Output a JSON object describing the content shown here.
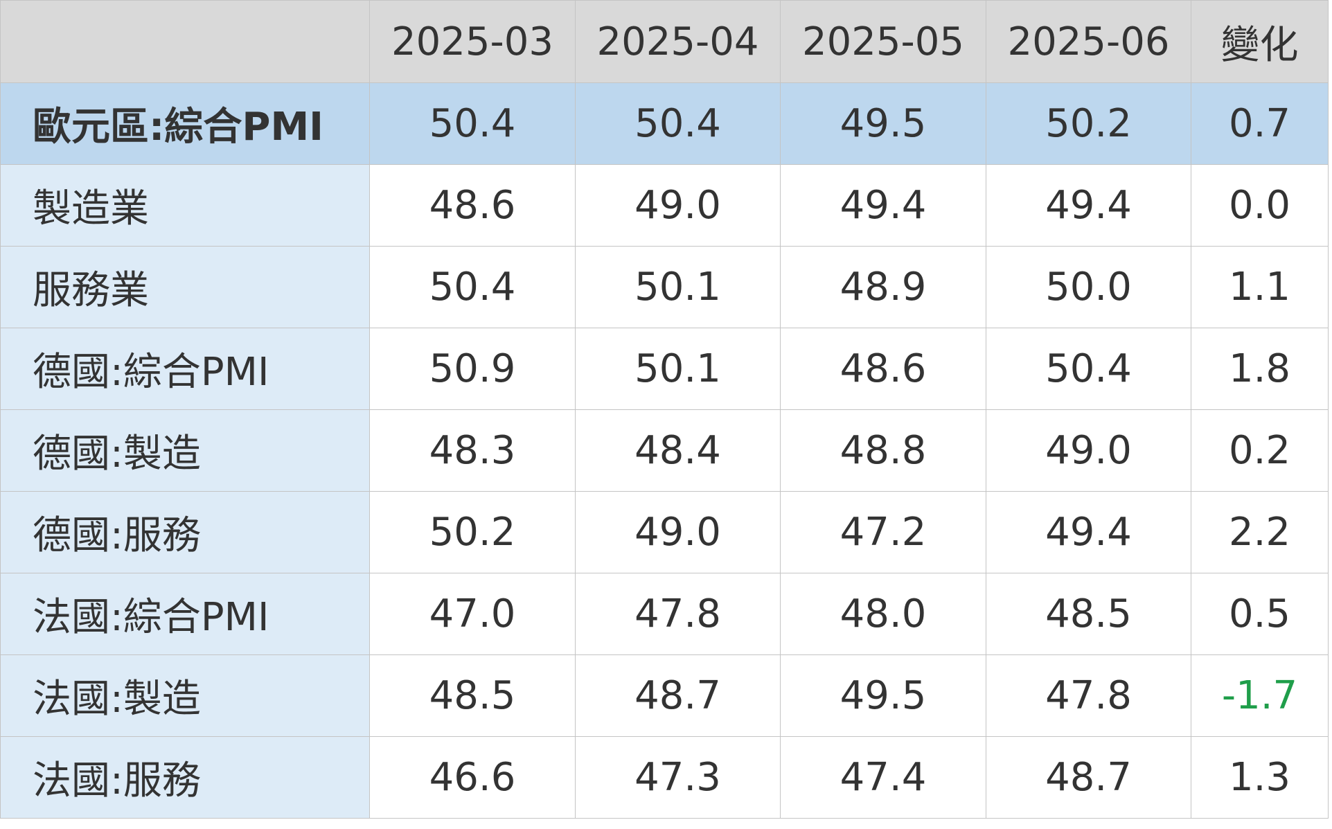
{
  "table": {
    "header": [
      "",
      "2025-03",
      "2025-04",
      "2025-05",
      "2025-06",
      "變化"
    ],
    "rows": [
      [
        "歐元區:綜合PMI",
        "50.4",
        "50.4",
        "49.5",
        "50.2",
        "0.7"
      ],
      [
        "製造業",
        "48.6",
        "49.0",
        "49.4",
        "49.4",
        "0.0"
      ],
      [
        "服務業",
        "50.4",
        "50.1",
        "48.9",
        "50.0",
        "1.1"
      ],
      [
        "德國:綜合PMI",
        "50.9",
        "50.1",
        "48.6",
        "50.4",
        "1.8"
      ],
      [
        "德國:製造",
        "48.3",
        "48.4",
        "48.8",
        "49.0",
        "0.2"
      ],
      [
        "德國:服務",
        "50.2",
        "49.0",
        "47.2",
        "49.4",
        "2.2"
      ],
      [
        "法國:綜合PMI",
        "47.0",
        "47.8",
        "48.0",
        "48.5",
        "0.5"
      ],
      [
        "法國:製造",
        "48.5",
        "48.7",
        "49.5",
        "47.8",
        "-1.7"
      ],
      [
        "法國:服務",
        "46.6",
        "47.3",
        "47.4",
        "48.7",
        "1.3"
      ]
    ]
  }
}
